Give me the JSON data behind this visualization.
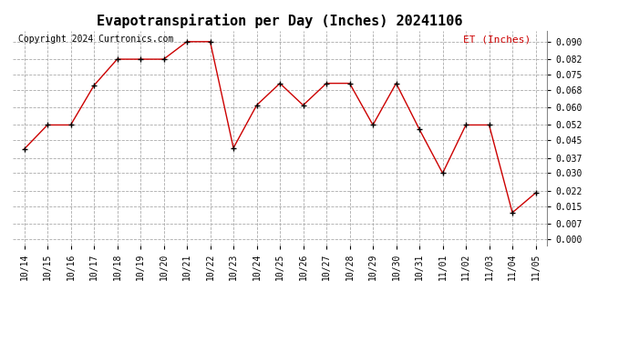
{
  "title": "Evapotranspiration per Day (Inches) 20241106",
  "copyright": "Copyright 2024 Curtronics.com",
  "legend_label": "ET (Inches)",
  "dates": [
    "10/14",
    "10/15",
    "10/16",
    "10/17",
    "10/18",
    "10/19",
    "10/20",
    "10/21",
    "10/22",
    "10/23",
    "10/24",
    "10/25",
    "10/26",
    "10/27",
    "10/28",
    "10/29",
    "10/30",
    "10/31",
    "11/01",
    "11/02",
    "11/03",
    "11/04",
    "11/05"
  ],
  "values": [
    0.041,
    0.052,
    0.052,
    0.07,
    0.082,
    0.082,
    0.082,
    0.09,
    0.09,
    0.0415,
    0.061,
    0.071,
    0.061,
    0.071,
    0.071,
    0.052,
    0.071,
    0.05,
    0.03,
    0.052,
    0.052,
    0.012,
    0.021
  ],
  "line_color": "#cc0000",
  "marker_color": "#000000",
  "background_color": "#ffffff",
  "grid_color": "#aaaaaa",
  "yticks": [
    0.0,
    0.007,
    0.015,
    0.022,
    0.03,
    0.037,
    0.045,
    0.052,
    0.06,
    0.068,
    0.075,
    0.082,
    0.09
  ],
  "ylim": [
    -0.003,
    0.095
  ],
  "title_fontsize": 11,
  "legend_color": "#cc0000",
  "legend_fontsize": 8,
  "copyright_fontsize": 7,
  "tick_fontsize": 7
}
